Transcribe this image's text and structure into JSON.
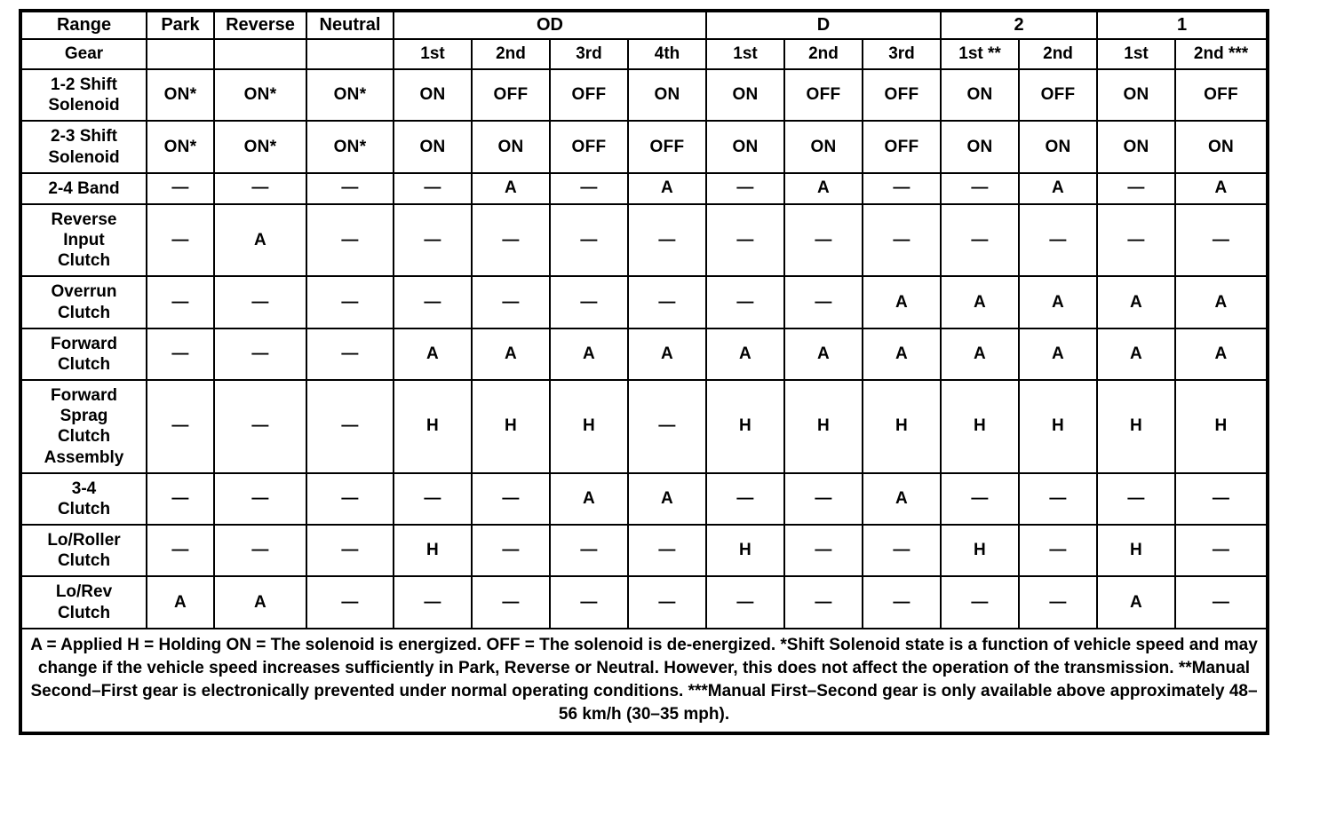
{
  "table": {
    "range_label": "Range",
    "gear_label": "Gear",
    "range_groups": [
      {
        "label": "Park",
        "span": 1
      },
      {
        "label": "Reverse",
        "span": 1
      },
      {
        "label": "Neutral",
        "span": 1
      },
      {
        "label": "OD",
        "span": 4
      },
      {
        "label": "D",
        "span": 3
      },
      {
        "label": "2",
        "span": 2
      },
      {
        "label": "1",
        "span": 2
      }
    ],
    "gear_headers": [
      "",
      "",
      "",
      "1st",
      "2nd",
      "3rd",
      "4th",
      "1st",
      "2nd",
      "3rd",
      "1st **",
      "2nd",
      "1st",
      "2nd ***"
    ],
    "rows": [
      {
        "label": "1-2 Shift\nSolenoid",
        "values": [
          "ON*",
          "ON*",
          "ON*",
          "ON",
          "OFF",
          "OFF",
          "ON",
          "ON",
          "OFF",
          "OFF",
          "ON",
          "OFF",
          "ON",
          "OFF"
        ]
      },
      {
        "label": "2-3 Shift\nSolenoid",
        "values": [
          "ON*",
          "ON*",
          "ON*",
          "ON",
          "ON",
          "OFF",
          "OFF",
          "ON",
          "ON",
          "OFF",
          "ON",
          "ON",
          "ON",
          "ON"
        ]
      },
      {
        "label": "2-4 Band",
        "values": [
          "—",
          "—",
          "—",
          "—",
          "A",
          "—",
          "A",
          "—",
          "A",
          "—",
          "—",
          "A",
          "—",
          "A"
        ]
      },
      {
        "label": "Reverse\nInput\nClutch",
        "values": [
          "—",
          "A",
          "—",
          "—",
          "—",
          "—",
          "—",
          "—",
          "—",
          "—",
          "—",
          "—",
          "—",
          "—"
        ]
      },
      {
        "label": "Overrun\nClutch",
        "values": [
          "—",
          "—",
          "—",
          "—",
          "—",
          "—",
          "—",
          "—",
          "—",
          "A",
          "A",
          "A",
          "A",
          "A"
        ]
      },
      {
        "label": "Forward\nClutch",
        "values": [
          "—",
          "—",
          "—",
          "A",
          "A",
          "A",
          "A",
          "A",
          "A",
          "A",
          "A",
          "A",
          "A",
          "A"
        ]
      },
      {
        "label": "Forward\nSprag\nClutch\nAssembly",
        "values": [
          "—",
          "—",
          "—",
          "H",
          "H",
          "H",
          "—",
          "H",
          "H",
          "H",
          "H",
          "H",
          "H",
          "H"
        ]
      },
      {
        "label": "3-4\nClutch",
        "values": [
          "—",
          "—",
          "—",
          "—",
          "—",
          "A",
          "A",
          "—",
          "—",
          "A",
          "—",
          "—",
          "—",
          "—"
        ]
      },
      {
        "label": "Lo/Roller\nClutch",
        "values": [
          "—",
          "—",
          "—",
          "H",
          "—",
          "—",
          "—",
          "H",
          "—",
          "—",
          "H",
          "—",
          "H",
          "—"
        ]
      },
      {
        "label": "Lo/Rev\nClutch",
        "values": [
          "A",
          "A",
          "—",
          "—",
          "—",
          "—",
          "—",
          "—",
          "—",
          "—",
          "—",
          "—",
          "A",
          "—"
        ]
      }
    ],
    "footnote": "A = Applied H = Holding ON = The solenoid is energized. OFF = The solenoid is de-energized. *Shift Solenoid state is a function of vehicle speed and may change if the vehicle speed increases sufficiently in Park, Reverse or Neutral. However, this does not affect the operation of the transmission. **Manual Second–First gear is electronically prevented under normal operating conditions. ***Manual First–Second gear is only available above approximately 48–56 km/h (30–35 mph)."
  }
}
